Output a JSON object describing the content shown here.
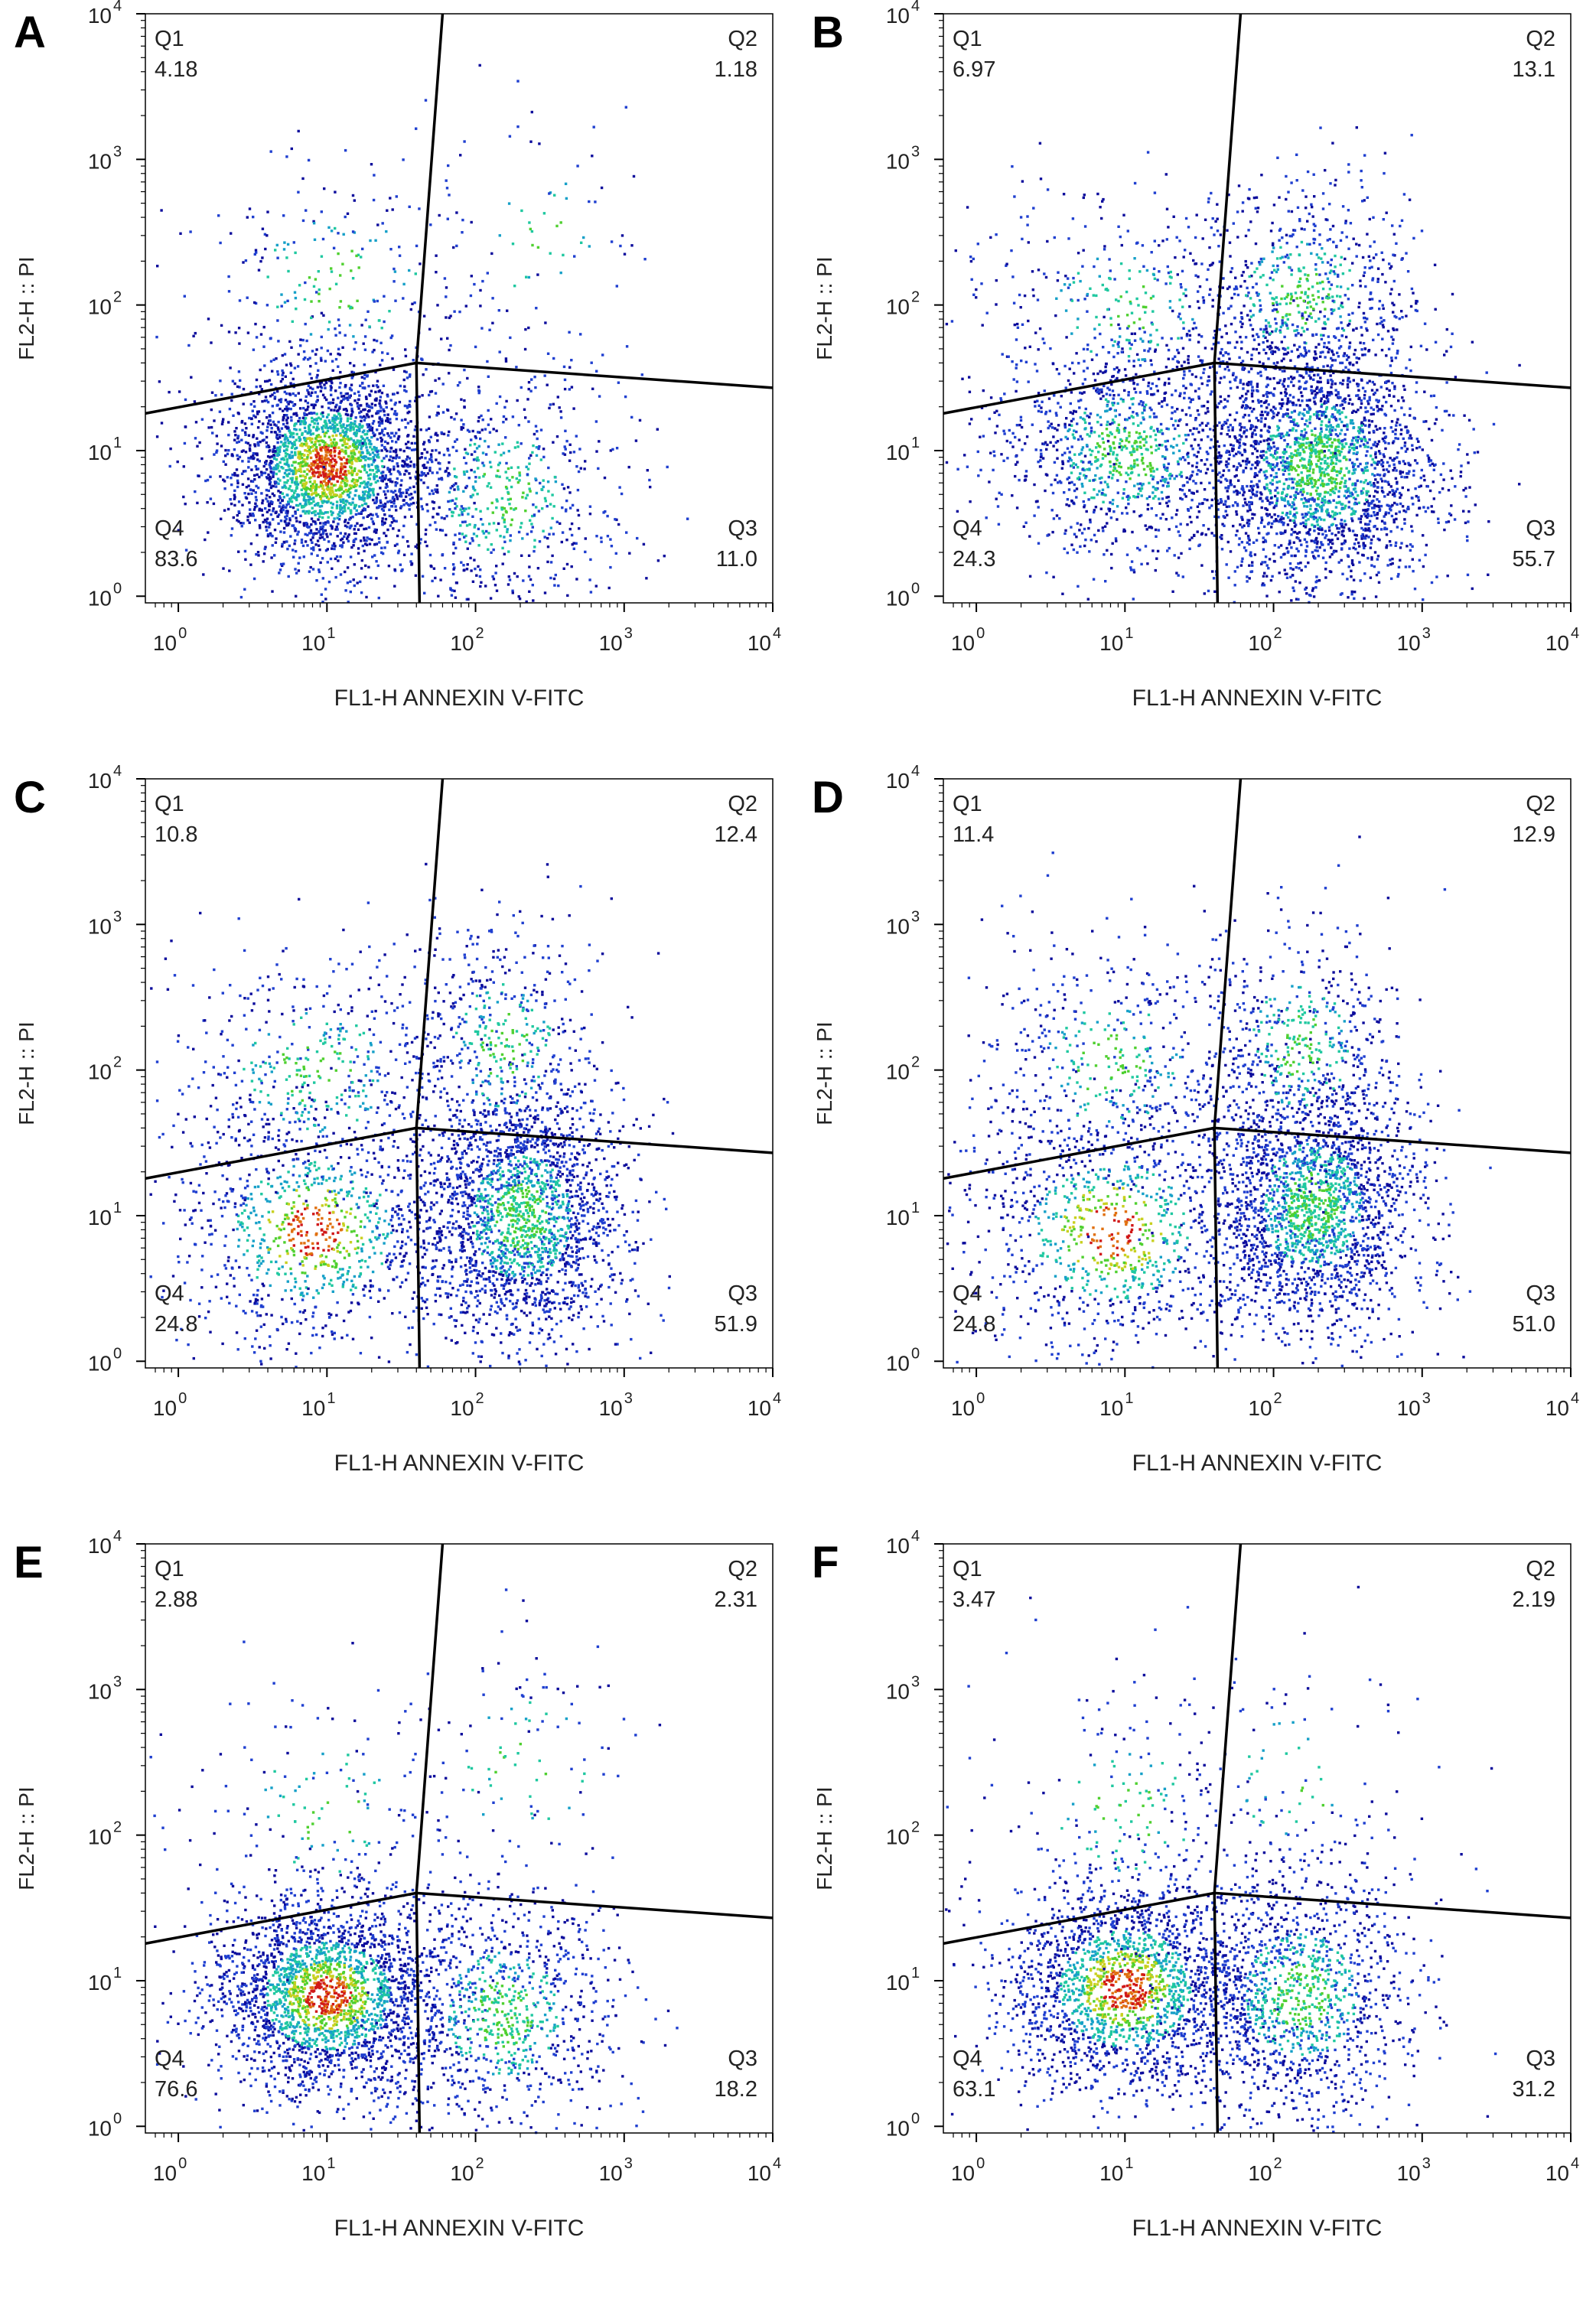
{
  "figure": {
    "description_free": true,
    "dot_colors": [
      "#0c0c9c",
      "#1f3fd0",
      "#16a0c8",
      "#1fc8a0",
      "#4fd030",
      "#c8d020",
      "#e07010",
      "#d01818"
    ],
    "gate_color": "#000000",
    "axis_color": "#000000"
  },
  "chart_data": [
    {
      "type": "scatter",
      "panel": "A",
      "xlabel": "FL1-H ANNEXIN V-FITC",
      "ylabel": "FL2-H :: PI",
      "x_scale": "log",
      "y_scale": "log",
      "xlim": [
        0.6,
        10000
      ],
      "ylim": [
        0.9,
        10000
      ],
      "xticks": [
        "10",
        "10",
        "10",
        "10",
        "10"
      ],
      "xtick_exps": [
        "0",
        "1",
        "2",
        "3",
        "4"
      ],
      "yticks": [
        "10",
        "10",
        "10",
        "10",
        "10"
      ],
      "ytick_exps": [
        "0",
        "1",
        "2",
        "3",
        "4"
      ],
      "quadrants": [
        {
          "name": "Q1",
          "value": "4.18"
        },
        {
          "name": "Q2",
          "value": "1.18"
        },
        {
          "name": "Q3",
          "value": "11.0"
        },
        {
          "name": "Q4",
          "value": "83.6"
        }
      ],
      "gate": {
        "center": [
          40,
          40
        ],
        "left_y": 18,
        "right_y": 27,
        "top_x": 60,
        "bottom_x": 42
      },
      "populations": [
        {
          "cx": 10,
          "cy": 8,
          "sx": 0.35,
          "sy": 0.35,
          "n": 2600
        },
        {
          "cx": 150,
          "cy": 5,
          "sx": 0.4,
          "sy": 0.45,
          "n": 650
        },
        {
          "cx": 12,
          "cy": 150,
          "sx": 0.55,
          "sy": 0.45,
          "n": 260
        },
        {
          "cx": 250,
          "cy": 300,
          "sx": 0.45,
          "sy": 0.5,
          "n": 70
        }
      ]
    },
    {
      "type": "scatter",
      "panel": "B",
      "xlabel": "FL1-H ANNEXIN V-FITC",
      "ylabel": "FL2-H :: PI",
      "x_scale": "log",
      "y_scale": "log",
      "xlim": [
        0.6,
        10000
      ],
      "ylim": [
        0.9,
        10000
      ],
      "xticks": [
        "10",
        "10",
        "10",
        "10",
        "10"
      ],
      "xtick_exps": [
        "0",
        "1",
        "2",
        "3",
        "4"
      ],
      "yticks": [
        "10",
        "10",
        "10",
        "10",
        "10"
      ],
      "ytick_exps": [
        "0",
        "1",
        "2",
        "3",
        "4"
      ],
      "quadrants": [
        {
          "name": "Q1",
          "value": "6.97"
        },
        {
          "name": "Q2",
          "value": "13.1"
        },
        {
          "name": "Q3",
          "value": "55.7"
        },
        {
          "name": "Q4",
          "value": "24.3"
        }
      ],
      "gate": {
        "center": [
          40,
          40
        ],
        "left_y": 18,
        "right_y": 27,
        "top_x": 60,
        "bottom_x": 42
      },
      "populations": [
        {
          "cx": 10,
          "cy": 10,
          "sx": 0.45,
          "sy": 0.4,
          "n": 1100
        },
        {
          "cx": 200,
          "cy": 8,
          "sx": 0.4,
          "sy": 0.45,
          "n": 2400
        },
        {
          "cx": 10,
          "cy": 100,
          "sx": 0.5,
          "sy": 0.4,
          "n": 350
        },
        {
          "cx": 150,
          "cy": 120,
          "sx": 0.4,
          "sy": 0.4,
          "n": 650
        }
      ]
    },
    {
      "type": "scatter",
      "panel": "C",
      "xlabel": "FL1-H ANNEXIN V-FITC",
      "ylabel": "FL2-H :: PI",
      "x_scale": "log",
      "y_scale": "log",
      "xlim": [
        0.6,
        10000
      ],
      "ylim": [
        0.9,
        10000
      ],
      "xticks": [
        "10",
        "10",
        "10",
        "10",
        "10"
      ],
      "xtick_exps": [
        "0",
        "1",
        "2",
        "3",
        "4"
      ],
      "yticks": [
        "10",
        "10",
        "10",
        "10",
        "10"
      ],
      "ytick_exps": [
        "0",
        "1",
        "2",
        "3",
        "4"
      ],
      "quadrants": [
        {
          "name": "Q1",
          "value": "10.8"
        },
        {
          "name": "Q2",
          "value": "12.4"
        },
        {
          "name": "Q3",
          "value": "51.9"
        },
        {
          "name": "Q4",
          "value": "24.8"
        }
      ],
      "gate": {
        "center": [
          40,
          40
        ],
        "left_y": 18,
        "right_y": 27,
        "top_x": 60,
        "bottom_x": 42
      },
      "populations": [
        {
          "cx": 8,
          "cy": 8,
          "sx": 0.5,
          "sy": 0.45,
          "n": 1000
        },
        {
          "cx": 200,
          "cy": 10,
          "sx": 0.35,
          "sy": 0.45,
          "n": 2100
        },
        {
          "cx": 8,
          "cy": 100,
          "sx": 0.5,
          "sy": 0.45,
          "n": 450
        },
        {
          "cx": 150,
          "cy": 150,
          "sx": 0.35,
          "sy": 0.45,
          "n": 520
        }
      ]
    },
    {
      "type": "scatter",
      "panel": "D",
      "xlabel": "FL1-H ANNEXIN V-FITC",
      "ylabel": "FL2-H :: PI",
      "x_scale": "log",
      "y_scale": "log",
      "xlim": [
        0.6,
        10000
      ],
      "ylim": [
        0.9,
        10000
      ],
      "xticks": [
        "10",
        "10",
        "10",
        "10",
        "10"
      ],
      "xtick_exps": [
        "0",
        "1",
        "2",
        "3",
        "4"
      ],
      "yticks": [
        "10",
        "10",
        "10",
        "10",
        "10"
      ],
      "ytick_exps": [
        "0",
        "1",
        "2",
        "3",
        "4"
      ],
      "quadrants": [
        {
          "name": "Q1",
          "value": "11.4"
        },
        {
          "name": "Q2",
          "value": "12.9"
        },
        {
          "name": "Q3",
          "value": "51.0"
        },
        {
          "name": "Q4",
          "value": "24.8"
        }
      ],
      "gate": {
        "center": [
          40,
          40
        ],
        "left_y": 18,
        "right_y": 27,
        "top_x": 60,
        "bottom_x": 42
      },
      "populations": [
        {
          "cx": 8,
          "cy": 8,
          "sx": 0.5,
          "sy": 0.45,
          "n": 1000
        },
        {
          "cx": 180,
          "cy": 12,
          "sx": 0.35,
          "sy": 0.45,
          "n": 2050
        },
        {
          "cx": 8,
          "cy": 110,
          "sx": 0.5,
          "sy": 0.45,
          "n": 470
        },
        {
          "cx": 150,
          "cy": 150,
          "sx": 0.35,
          "sy": 0.45,
          "n": 530
        }
      ]
    },
    {
      "type": "scatter",
      "panel": "E",
      "xlabel": "FL1-H ANNEXIN V-FITC",
      "ylabel": "FL2-H :: PI",
      "x_scale": "log",
      "y_scale": "log",
      "xlim": [
        0.6,
        10000
      ],
      "ylim": [
        0.9,
        10000
      ],
      "xticks": [
        "10",
        "10",
        "10",
        "10",
        "10"
      ],
      "xtick_exps": [
        "0",
        "1",
        "2",
        "3",
        "4"
      ],
      "yticks": [
        "10",
        "10",
        "10",
        "10",
        "10"
      ],
      "ytick_exps": [
        "0",
        "1",
        "2",
        "3",
        "4"
      ],
      "quadrants": [
        {
          "name": "Q1",
          "value": "2.88"
        },
        {
          "name": "Q2",
          "value": "2.31"
        },
        {
          "name": "Q3",
          "value": "18.2"
        },
        {
          "name": "Q4",
          "value": "76.6"
        }
      ],
      "gate": {
        "center": [
          40,
          40
        ],
        "left_y": 18,
        "right_y": 27,
        "top_x": 60,
        "bottom_x": 42
      },
      "populations": [
        {
          "cx": 10,
          "cy": 8,
          "sx": 0.4,
          "sy": 0.35,
          "n": 2400
        },
        {
          "cx": 150,
          "cy": 6,
          "sx": 0.4,
          "sy": 0.45,
          "n": 900
        },
        {
          "cx": 10,
          "cy": 150,
          "sx": 0.5,
          "sy": 0.45,
          "n": 150
        },
        {
          "cx": 200,
          "cy": 300,
          "sx": 0.45,
          "sy": 0.5,
          "n": 110
        }
      ]
    },
    {
      "type": "scatter",
      "panel": "F",
      "xlabel": "FL1-H ANNEXIN V-FITC",
      "ylabel": "FL2-H :: PI",
      "x_scale": "log",
      "y_scale": "log",
      "xlim": [
        0.6,
        10000
      ],
      "ylim": [
        0.9,
        10000
      ],
      "xticks": [
        "10",
        "10",
        "10",
        "10",
        "10"
      ],
      "xtick_exps": [
        "0",
        "1",
        "2",
        "3",
        "4"
      ],
      "yticks": [
        "10",
        "10",
        "10",
        "10",
        "10"
      ],
      "ytick_exps": [
        "0",
        "1",
        "2",
        "3",
        "4"
      ],
      "quadrants": [
        {
          "name": "Q1",
          "value": "3.47"
        },
        {
          "name": "Q2",
          "value": "2.19"
        },
        {
          "name": "Q3",
          "value": "31.2"
        },
        {
          "name": "Q4",
          "value": "63.1"
        }
      ],
      "gate": {
        "center": [
          40,
          40
        ],
        "left_y": 18,
        "right_y": 27,
        "top_x": 60,
        "bottom_x": 42
      },
      "populations": [
        {
          "cx": 10,
          "cy": 9,
          "sx": 0.42,
          "sy": 0.38,
          "n": 2000
        },
        {
          "cx": 150,
          "cy": 8,
          "sx": 0.4,
          "sy": 0.45,
          "n": 1300
        },
        {
          "cx": 10,
          "cy": 150,
          "sx": 0.5,
          "sy": 0.45,
          "n": 190
        },
        {
          "cx": 150,
          "cy": 250,
          "sx": 0.45,
          "sy": 0.5,
          "n": 100
        }
      ]
    }
  ]
}
